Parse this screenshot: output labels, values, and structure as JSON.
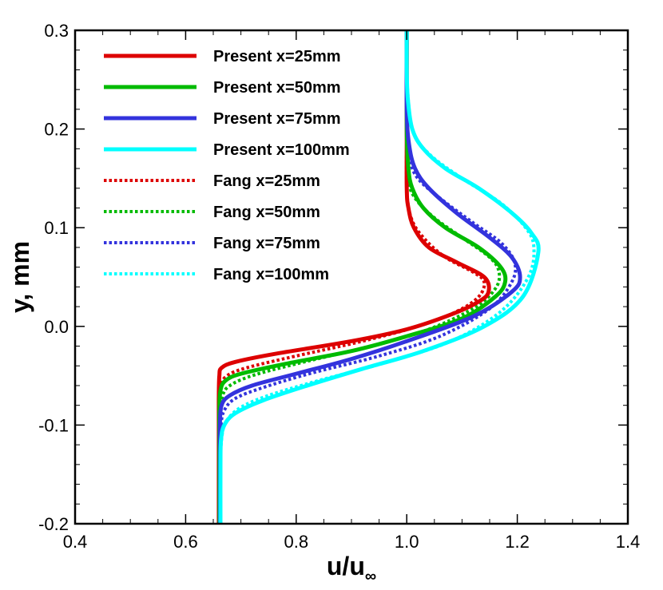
{
  "chart_data": {
    "type": "line",
    "title": "",
    "xlabel_main": "u/u",
    "xlabel_sub": "∞",
    "ylabel": "y, mm",
    "xlim": [
      0.4,
      1.4
    ],
    "ylim": [
      -0.2,
      0.3
    ],
    "xticks": [
      0.4,
      0.6,
      0.8,
      1.0,
      1.2,
      1.4
    ],
    "xtick_labels": [
      "0.4",
      "0.6",
      "0.8",
      "1.0",
      "1.2",
      "1.4"
    ],
    "yticks": [
      -0.2,
      -0.1,
      0.0,
      0.1,
      0.2,
      0.3
    ],
    "ytick_labels": [
      "-0.2",
      "-0.1",
      "0.0",
      "0.1",
      "0.2",
      "0.3"
    ],
    "grid": false,
    "legend_position": "top-left",
    "series": [
      {
        "name": "Present x=25mm",
        "color": "#dd0000",
        "style": "solid",
        "x": [
          0.66,
          0.66,
          0.66,
          0.661,
          0.665,
          0.69,
          0.76,
          0.9,
          1.0,
          1.08,
          1.13,
          1.148,
          1.14,
          1.09,
          1.04,
          1.013,
          1.003,
          1.0,
          1.0,
          1.0
        ],
        "y": [
          -0.2,
          -0.1,
          -0.07,
          -0.05,
          -0.042,
          -0.036,
          -0.028,
          -0.015,
          -0.003,
          0.012,
          0.025,
          0.035,
          0.05,
          0.065,
          0.08,
          0.1,
          0.12,
          0.14,
          0.2,
          0.3
        ]
      },
      {
        "name": "Present x=50mm",
        "color": "#00bb00",
        "style": "solid",
        "x": [
          0.661,
          0.661,
          0.661,
          0.663,
          0.672,
          0.7,
          0.78,
          0.9,
          1.0,
          1.1,
          1.16,
          1.178,
          1.17,
          1.13,
          1.07,
          1.03,
          1.01,
          1.003,
          1.0,
          1.0
        ],
        "y": [
          -0.2,
          -0.12,
          -0.085,
          -0.065,
          -0.055,
          -0.048,
          -0.038,
          -0.025,
          -0.01,
          0.008,
          0.03,
          0.045,
          0.06,
          0.08,
          0.1,
          0.12,
          0.14,
          0.16,
          0.2,
          0.3
        ]
      },
      {
        "name": "Present x=75mm",
        "color": "#3333dd",
        "style": "solid",
        "x": [
          0.662,
          0.662,
          0.662,
          0.665,
          0.68,
          0.72,
          0.8,
          0.9,
          1.0,
          1.12,
          1.19,
          1.205,
          1.19,
          1.15,
          1.09,
          1.04,
          1.015,
          1.004,
          1.0,
          1.0
        ],
        "y": [
          -0.2,
          -0.13,
          -0.1,
          -0.08,
          -0.07,
          -0.06,
          -0.048,
          -0.033,
          -0.015,
          0.01,
          0.035,
          0.05,
          0.07,
          0.09,
          0.115,
          0.14,
          0.16,
          0.185,
          0.22,
          0.3
        ]
      },
      {
        "name": "Present x=100mm",
        "color": "#00ffff",
        "style": "solid",
        "x": [
          0.663,
          0.663,
          0.664,
          0.67,
          0.69,
          0.74,
          0.82,
          0.92,
          1.03,
          1.14,
          1.21,
          1.238,
          1.225,
          1.19,
          1.13,
          1.07,
          1.03,
          1.01,
          1.002,
          1.0,
          1.0
        ],
        "y": [
          -0.2,
          -0.14,
          -0.115,
          -0.1,
          -0.088,
          -0.075,
          -0.06,
          -0.043,
          -0.025,
          0.0,
          0.03,
          0.075,
          0.095,
          0.115,
          0.14,
          0.16,
          0.18,
          0.2,
          0.23,
          0.26,
          0.3
        ]
      },
      {
        "name": "Fang x=25mm",
        "color": "#dd0000",
        "style": "dotted",
        "x": [
          0.66,
          0.66,
          0.661,
          0.664,
          0.675,
          0.71,
          0.8,
          0.92,
          1.02,
          1.09,
          1.13,
          1.14,
          1.12,
          1.07,
          1.03,
          1.008,
          1.0,
          1.0
        ],
        "y": [
          -0.2,
          -0.11,
          -0.08,
          -0.06,
          -0.05,
          -0.042,
          -0.03,
          -0.015,
          0.0,
          0.015,
          0.03,
          0.045,
          0.055,
          0.07,
          0.09,
          0.11,
          0.14,
          0.2
        ]
      },
      {
        "name": "Fang x=50mm",
        "color": "#00bb00",
        "style": "dotted",
        "x": [
          0.661,
          0.661,
          0.662,
          0.667,
          0.68,
          0.72,
          0.8,
          0.92,
          1.03,
          1.12,
          1.16,
          1.167,
          1.15,
          1.1,
          1.05,
          1.015,
          1.003,
          1.0
        ],
        "y": [
          -0.2,
          -0.12,
          -0.09,
          -0.07,
          -0.06,
          -0.05,
          -0.038,
          -0.022,
          -0.005,
          0.018,
          0.038,
          0.055,
          0.07,
          0.09,
          0.11,
          0.13,
          0.15,
          0.2
        ]
      },
      {
        "name": "Fang x=75mm",
        "color": "#3333dd",
        "style": "dotted",
        "x": [
          0.662,
          0.662,
          0.664,
          0.67,
          0.69,
          0.74,
          0.83,
          0.95,
          1.06,
          1.15,
          1.19,
          1.195,
          1.17,
          1.12,
          1.06,
          1.02,
          1.005,
          1.0
        ],
        "y": [
          -0.2,
          -0.13,
          -0.1,
          -0.085,
          -0.073,
          -0.062,
          -0.047,
          -0.03,
          -0.01,
          0.018,
          0.045,
          0.065,
          0.085,
          0.105,
          0.13,
          0.15,
          0.17,
          0.2
        ]
      },
      {
        "name": "Fang x=100mm",
        "color": "#00ffff",
        "style": "dotted",
        "x": [
          0.663,
          0.663,
          0.666,
          0.675,
          0.7,
          0.75,
          0.84,
          0.96,
          1.08,
          1.17,
          1.22,
          1.23,
          1.215,
          1.17,
          1.1,
          1.04,
          1.01,
          1.0
        ],
        "y": [
          -0.2,
          -0.14,
          -0.11,
          -0.095,
          -0.082,
          -0.07,
          -0.055,
          -0.037,
          -0.015,
          0.015,
          0.05,
          0.08,
          0.1,
          0.125,
          0.15,
          0.175,
          0.2,
          0.25
        ]
      }
    ]
  }
}
